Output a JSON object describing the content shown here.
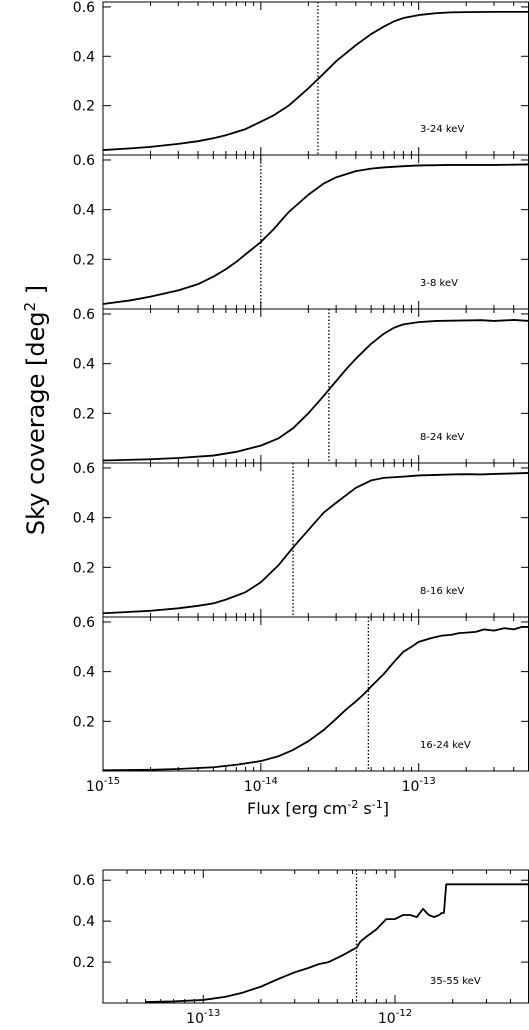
{
  "figure": {
    "ylabel_main": "Sky coverage [deg",
    "ylabel_sup": "2",
    "ylabel_end": " ]"
  },
  "chart_data": [
    {
      "type": "line",
      "annotation": "3-24 keV",
      "xscale": "log",
      "xlim": [
        1e-15,
        5e-13
      ],
      "ylim": [
        0,
        0.62
      ],
      "yticks": [
        0.2,
        0.4,
        0.6
      ],
      "ytick_labels": [
        "0.2",
        "0.4",
        "0.6"
      ],
      "vline": 2.3e-14,
      "vline_style": "dotted",
      "series": [
        {
          "x": [
            1e-15,
            1.5e-15,
            2e-15,
            3e-15,
            4e-15,
            5e-15,
            6e-15,
            8e-15,
            1e-14,
            1.2e-14,
            1.5e-14,
            2e-14,
            2.5e-14,
            3e-14,
            4e-14,
            5e-14,
            6e-14,
            7e-14,
            8e-14,
            1e-13,
            1.3e-13,
            1.6e-13,
            2e-13,
            3e-13,
            4e-13,
            5e-13
          ],
          "y": [
            0.02,
            0.027,
            0.033,
            0.045,
            0.056,
            0.068,
            0.08,
            0.105,
            0.135,
            0.16,
            0.2,
            0.27,
            0.33,
            0.38,
            0.445,
            0.49,
            0.52,
            0.542,
            0.555,
            0.567,
            0.575,
            0.578,
            0.579,
            0.58,
            0.58,
            0.58
          ]
        }
      ]
    },
    {
      "type": "line",
      "annotation": "3-8 keV",
      "xscale": "log",
      "xlim": [
        1e-15,
        5e-13
      ],
      "ylim": [
        0,
        0.62
      ],
      "yticks": [
        0.2,
        0.4,
        0.6
      ],
      "ytick_labels": [
        "0.2",
        "0.4",
        "0.6"
      ],
      "vline": 1e-14,
      "vline_style": "dotted",
      "series": [
        {
          "x": [
            1e-15,
            1.5e-15,
            2e-15,
            3e-15,
            4e-15,
            5e-15,
            6e-15,
            7e-15,
            8e-15,
            1e-14,
            1.2e-14,
            1.5e-14,
            2e-14,
            2.5e-14,
            3e-14,
            4e-14,
            5e-14,
            6e-14,
            8e-14,
            1e-13,
            1.3e-13,
            1.6e-13,
            2e-13,
            3e-13,
            4e-13,
            5e-13
          ],
          "y": [
            0.02,
            0.035,
            0.05,
            0.075,
            0.1,
            0.13,
            0.16,
            0.19,
            0.22,
            0.27,
            0.32,
            0.39,
            0.46,
            0.505,
            0.53,
            0.555,
            0.565,
            0.57,
            0.575,
            0.578,
            0.579,
            0.58,
            0.58,
            0.58,
            0.581,
            0.582
          ]
        }
      ]
    },
    {
      "type": "line",
      "annotation": "8-24 keV",
      "xscale": "log",
      "xlim": [
        1e-15,
        5e-13
      ],
      "ylim": [
        0,
        0.62
      ],
      "yticks": [
        0.2,
        0.4,
        0.6
      ],
      "ytick_labels": [
        "0.2",
        "0.4",
        "0.6"
      ],
      "vline": 2.7e-14,
      "vline_style": "dotted",
      "series": [
        {
          "x": [
            1e-15,
            2e-15,
            3e-15,
            5e-15,
            7e-15,
            1e-14,
            1.3e-14,
            1.6e-14,
            2e-14,
            2.5e-14,
            3e-14,
            3.5e-14,
            4e-14,
            5e-14,
            6e-14,
            7e-14,
            8e-14,
            1e-13,
            1.3e-13,
            1.6e-13,
            2e-13,
            2.5e-13,
            3e-13,
            4e-13,
            5e-13
          ],
          "y": [
            0.01,
            0.015,
            0.02,
            0.03,
            0.045,
            0.07,
            0.1,
            0.14,
            0.2,
            0.27,
            0.33,
            0.38,
            0.42,
            0.48,
            0.52,
            0.545,
            0.558,
            0.567,
            0.572,
            0.573,
            0.574,
            0.575,
            0.572,
            0.576,
            0.572
          ]
        }
      ]
    },
    {
      "type": "line",
      "annotation": "8-16 keV",
      "xscale": "log",
      "xlim": [
        1e-15,
        5e-13
      ],
      "ylim": [
        0,
        0.62
      ],
      "yticks": [
        0.2,
        0.4,
        0.6
      ],
      "ytick_labels": [
        "0.2",
        "0.4",
        "0.6"
      ],
      "vline": 1.6e-14,
      "vline_style": "dotted",
      "series": [
        {
          "x": [
            1e-15,
            2e-15,
            3e-15,
            4e-15,
            5e-15,
            6e-15,
            8e-15,
            1e-14,
            1.3e-14,
            1.6e-14,
            2e-14,
            2.5e-14,
            3e-14,
            4e-14,
            5e-14,
            6e-14,
            8e-14,
            1e-13,
            1.3e-13,
            1.6e-13,
            2e-13,
            2.5e-13,
            3e-13,
            4e-13,
            5e-13
          ],
          "y": [
            0.015,
            0.025,
            0.035,
            0.045,
            0.055,
            0.07,
            0.1,
            0.14,
            0.21,
            0.28,
            0.35,
            0.42,
            0.46,
            0.52,
            0.55,
            0.56,
            0.565,
            0.57,
            0.572,
            0.574,
            0.575,
            0.574,
            0.576,
            0.578,
            0.58
          ]
        }
      ]
    },
    {
      "type": "line",
      "annotation": "16-24 keV",
      "xscale": "log",
      "xlim": [
        1e-15,
        5e-13
      ],
      "ylim": [
        0,
        0.62
      ],
      "yticks": [
        0.2,
        0.4,
        0.6
      ],
      "ytick_labels": [
        "0.2",
        "0.4",
        "0.6"
      ],
      "xticks": [
        1e-15,
        1e-14,
        1e-13
      ],
      "xtick_labels": [
        {
          "base": "10",
          "exp": "-15"
        },
        {
          "base": "10",
          "exp": "-14"
        },
        {
          "base": "10",
          "exp": "-13"
        }
      ],
      "xlabel": {
        "pre": "Flux [erg cm",
        "sup1": "-2",
        "mid": " s",
        "sup2": "-1",
        "post": "]"
      },
      "vline": 4.8e-14,
      "vline_style": "dotted",
      "series": [
        {
          "x": [
            1e-15,
            2e-15,
            3e-15,
            5e-15,
            7e-15,
            1e-14,
            1.3e-14,
            1.6e-14,
            2e-14,
            2.5e-14,
            3e-14,
            3.5e-14,
            4e-14,
            4.5e-14,
            5e-14,
            6e-14,
            7e-14,
            8e-14,
            9e-14,
            1e-13,
            1.2e-13,
            1.4e-13,
            1.6e-13,
            1.8e-13,
            2e-13,
            2.3e-13,
            2.6e-13,
            3e-13,
            3.5e-13,
            4e-13,
            4.5e-13,
            5e-13
          ],
          "y": [
            0.003,
            0.005,
            0.008,
            0.015,
            0.025,
            0.04,
            0.06,
            0.085,
            0.12,
            0.165,
            0.21,
            0.25,
            0.28,
            0.31,
            0.34,
            0.39,
            0.44,
            0.48,
            0.5,
            0.52,
            0.535,
            0.545,
            0.548,
            0.555,
            0.557,
            0.56,
            0.57,
            0.565,
            0.575,
            0.57,
            0.58,
            0.58
          ]
        }
      ]
    },
    {
      "type": "line",
      "annotation": "35-55 keV",
      "xscale": "log",
      "xlim": [
        3e-14,
        5e-12
      ],
      "ylim": [
        0,
        0.65
      ],
      "yticks": [
        0.2,
        0.4,
        0.6
      ],
      "ytick_labels": [
        "0.2",
        "0.4",
        "0.6"
      ],
      "xticks": [
        1e-13,
        1e-12
      ],
      "xtick_labels": [
        {
          "base": "10",
          "exp": "-13"
        },
        {
          "base": "10",
          "exp": "-12"
        }
      ],
      "xlabel": {
        "pre": "Flux [erg cm",
        "sup1": "-2",
        "mid": " s",
        "sup2": "-1",
        "post": "]"
      },
      "vline": 6.3e-13,
      "vline_style": "dotted",
      "series": [
        {
          "x": [
            5e-14,
            7e-14,
            1e-13,
            1.3e-13,
            1.6e-13,
            2e-13,
            2.5e-13,
            3e-13,
            3.5e-13,
            4e-13,
            4.5e-13,
            5e-13,
            5.5e-13,
            6e-13,
            6.3e-13,
            6.6e-13,
            7e-13,
            8e-13,
            9e-13,
            1e-12,
            1.1e-12,
            1.2e-12,
            1.3e-12,
            1.4e-12,
            1.5e-12,
            1.6e-12,
            1.7e-12,
            1.75e-12,
            1.8e-12,
            1.85e-12,
            2e-12,
            3e-12,
            4e-12,
            5e-12
          ],
          "y": [
            0.005,
            0.008,
            0.015,
            0.03,
            0.05,
            0.08,
            0.12,
            0.15,
            0.17,
            0.19,
            0.2,
            0.22,
            0.24,
            0.26,
            0.27,
            0.3,
            0.32,
            0.36,
            0.41,
            0.41,
            0.43,
            0.43,
            0.42,
            0.46,
            0.43,
            0.42,
            0.43,
            0.44,
            0.44,
            0.58,
            0.58,
            0.58,
            0.58,
            0.58
          ]
        }
      ]
    }
  ]
}
